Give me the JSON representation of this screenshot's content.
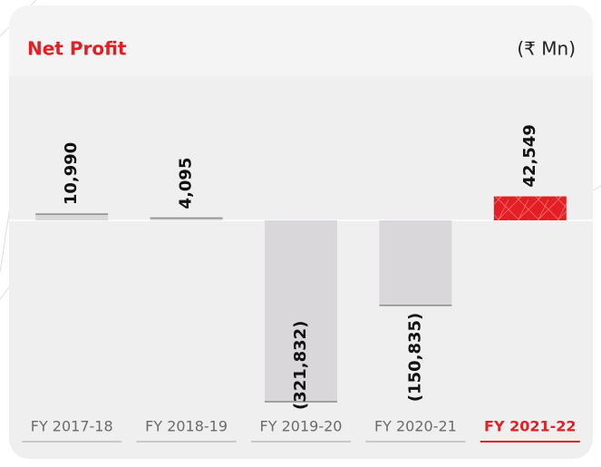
{
  "chart_data": {
    "type": "bar",
    "title": "Net Profit",
    "unit": "(₹ Mn)",
    "categories": [
      "FY 2017-18",
      "FY 2018-19",
      "FY 2019-20",
      "FY 2020-21",
      "FY 2021-22"
    ],
    "values": [
      10990,
      4095,
      -321832,
      -150835,
      42549
    ],
    "value_labels": [
      "10,990",
      "4,095",
      "(321,832)",
      "(150,835)",
      "42,549"
    ],
    "color": "#dad7da",
    "highlight_color": "#e31e24",
    "highlight": [
      false,
      false,
      false,
      false,
      true
    ]
  }
}
